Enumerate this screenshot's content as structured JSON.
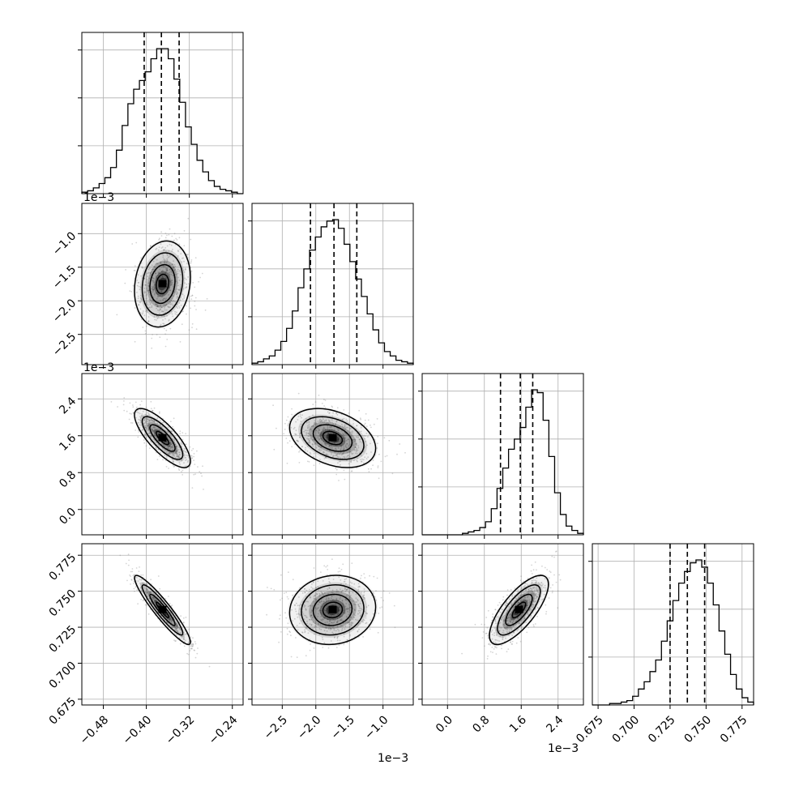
{
  "colors": {
    "hist": "#000000",
    "grid": "#b0b0b0",
    "points": "#888888",
    "density": "#000000"
  },
  "chart_data": {
    "type": "corner",
    "grid": true,
    "params": [
      {
        "ticks": [
          -0.48,
          -0.4,
          -0.32,
          -0.24
        ],
        "tick_labels": [
          "−0.48",
          "−0.40",
          "−0.32",
          "−0.24"
        ],
        "range": [
          -0.52,
          -0.22
        ],
        "offset_label": "",
        "center": -0.37,
        "sd": 0.026
      },
      {
        "ticks": [
          -2.5,
          -2.0,
          -1.5,
          -1.0
        ],
        "tick_labels": [
          "−2.5",
          "−2.0",
          "−1.5",
          "−1.0"
        ],
        "range": [
          -2.95,
          -0.55
        ],
        "offset_label": "1e−3",
        "center": -1.75,
        "sd": 0.32
      },
      {
        "ticks": [
          0.0,
          0.8,
          1.6,
          2.4
        ],
        "tick_labels": [
          "0.0",
          "0.8",
          "1.6",
          "2.4"
        ],
        "range": [
          -0.55,
          2.95
        ],
        "offset_label": "1e−3",
        "center": 1.55,
        "sd": 0.32
      },
      {
        "ticks": [
          0.675,
          0.7,
          0.725,
          0.75,
          0.775
        ],
        "tick_labels": [
          "0.675",
          "0.700",
          "0.725",
          "0.750",
          "0.775"
        ],
        "range": [
          0.671,
          0.783
        ],
        "offset_label": "",
        "center": 0.737,
        "sd": 0.012
      }
    ],
    "row_offset_labels": [
      "1e−3",
      "1e−3"
    ],
    "quantile_lines": [
      [
        -0.404,
        -0.372,
        -0.339
      ],
      [
        -2.08,
        -1.73,
        -1.39
      ],
      [
        1.15,
        1.58,
        1.85
      ],
      [
        0.725,
        0.737,
        0.749
      ]
    ],
    "histograms": [
      [
        1,
        2,
        4,
        7,
        11,
        18,
        30,
        47,
        62,
        72,
        78,
        84,
        93,
        100,
        100,
        93,
        79,
        63,
        46,
        34,
        23,
        15,
        9,
        5,
        3,
        2,
        1,
        0
      ],
      [
        1,
        2,
        4,
        6,
        10,
        16,
        25,
        37,
        53,
        66,
        79,
        88,
        95,
        99,
        100,
        94,
        83,
        71,
        59,
        47,
        35,
        24,
        15,
        9,
        6,
        3,
        2,
        1
      ],
      [
        0,
        0,
        0,
        0,
        0,
        0,
        0,
        1,
        2,
        3,
        5,
        9,
        18,
        32,
        46,
        59,
        66,
        74,
        88,
        100,
        98,
        79,
        54,
        29,
        14,
        6,
        3,
        1
      ],
      [
        0,
        0,
        0,
        1,
        1,
        2,
        3,
        6,
        11,
        16,
        23,
        31,
        44,
        58,
        72,
        84,
        92,
        98,
        100,
        95,
        84,
        69,
        51,
        35,
        21,
        11,
        5,
        2
      ]
    ],
    "correlations": {
      "1-0": 0.15,
      "2-0": -0.78,
      "2-1": -0.35,
      "3-0": -0.93,
      "3-1": 0.08,
      "3-2": 0.74
    }
  }
}
